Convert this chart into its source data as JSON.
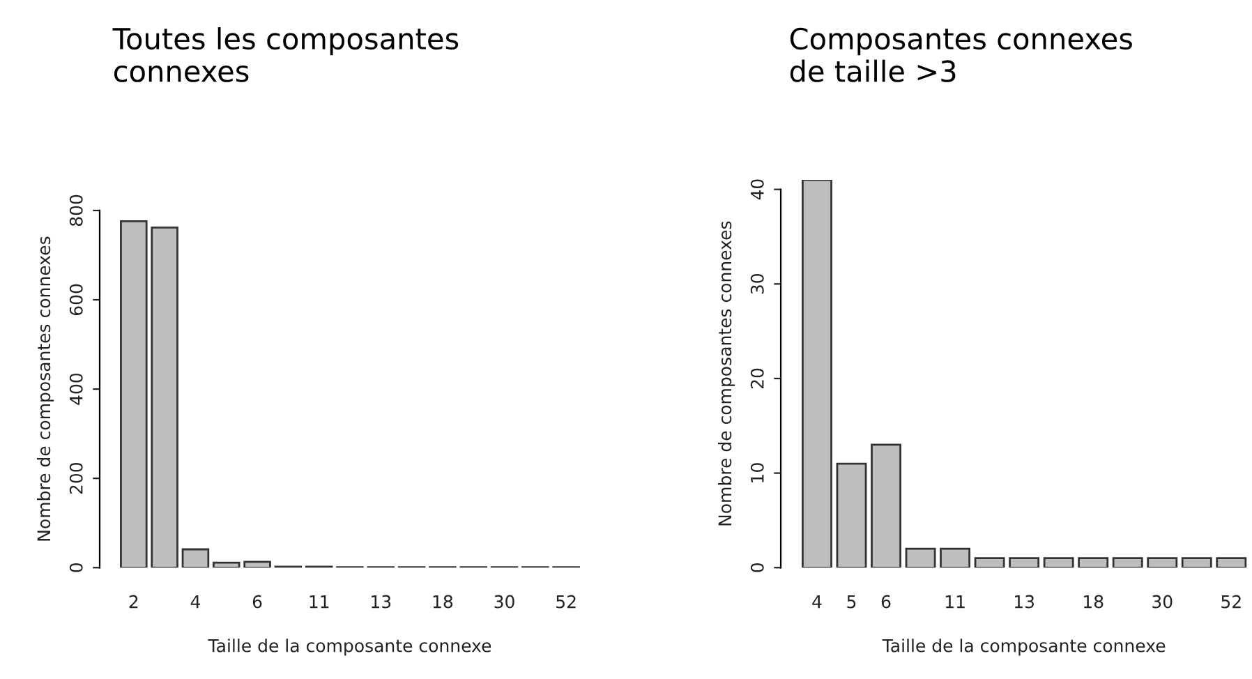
{
  "chart_data": [
    {
      "type": "bar",
      "title": "Toutes les composantes\nconnexes",
      "xlabel": "Taille de la composante connexe",
      "ylabel": "Nombre de composantes connexes",
      "categories": [
        "2",
        null,
        "4",
        null,
        "6",
        null,
        "11",
        null,
        "13",
        null,
        "18",
        null,
        "30",
        null,
        "52"
      ],
      "values": [
        776,
        762,
        41,
        11,
        13,
        2,
        2,
        1,
        1,
        1,
        1,
        1,
        1,
        1,
        1
      ],
      "color": "#bebebe",
      "ylim": [
        0,
        800
      ],
      "yticks": [
        0,
        200,
        400,
        600,
        800
      ],
      "grid": false
    },
    {
      "type": "bar",
      "title": "Composantes connexes\nde taille >3",
      "xlabel": "Taille de la composante connexe",
      "ylabel": "Nombre de composantes connexes",
      "categories": [
        "4",
        "5",
        "6",
        null,
        "11",
        null,
        "13",
        null,
        "18",
        null,
        "30",
        null,
        "52"
      ],
      "values": [
        41,
        11,
        13,
        2,
        2,
        1,
        1,
        1,
        1,
        1,
        1,
        1,
        1
      ],
      "color": "#bebebe",
      "ylim": [
        0,
        41
      ],
      "yticks": [
        0,
        10,
        20,
        30,
        40
      ],
      "grid": false
    }
  ]
}
